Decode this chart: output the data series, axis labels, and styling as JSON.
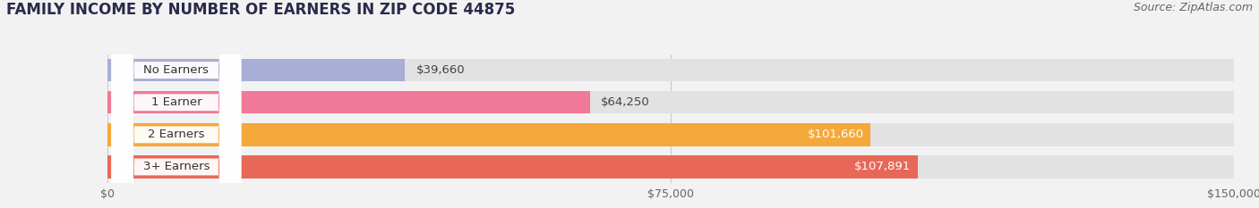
{
  "title": "FAMILY INCOME BY NUMBER OF EARNERS IN ZIP CODE 44875",
  "source": "Source: ZipAtlas.com",
  "categories": [
    "No Earners",
    "1 Earner",
    "2 Earners",
    "3+ Earners"
  ],
  "values": [
    39660,
    64250,
    101660,
    107891
  ],
  "max_value": 150000,
  "bar_colors": [
    "#a8aed6",
    "#f07898",
    "#f5a83a",
    "#e86858"
  ],
  "label_colors": [
    "#333333",
    "#333333",
    "#ffffff",
    "#ffffff"
  ],
  "value_labels": [
    "$39,660",
    "$64,250",
    "$101,660",
    "$107,891"
  ],
  "x_ticks": [
    0,
    75000,
    150000
  ],
  "x_tick_labels": [
    "$0",
    "$75,000",
    "$150,000"
  ],
  "background_color": "#f2f2f2",
  "bar_background": "#e2e2e2",
  "title_fontsize": 12,
  "source_fontsize": 9,
  "label_fontsize": 9.5,
  "value_fontsize": 9.5
}
